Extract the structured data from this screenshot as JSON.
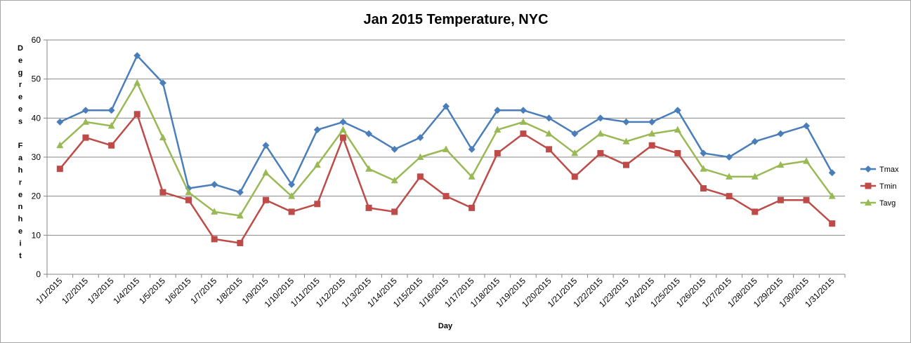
{
  "chart_data": {
    "type": "line",
    "title": "Jan 2015 Temperature, NYC",
    "xlabel": "Day",
    "ylabel": "Degrees Fahrenheit",
    "ylim": [
      0,
      60
    ],
    "yticks": [
      0,
      10,
      20,
      30,
      40,
      50,
      60
    ],
    "grid": "horizontal",
    "legend_position": "right",
    "categories": [
      "1/1/2015",
      "1/2/2015",
      "1/3/2015",
      "1/4/2015",
      "1/5/2015",
      "1/6/2015",
      "1/7/2015",
      "1/8/2015",
      "1/9/2015",
      "1/10/2015",
      "1/11/2015",
      "1/12/2015",
      "1/13/2015",
      "1/14/2015",
      "1/15/2015",
      "1/16/2015",
      "1/17/2015",
      "1/18/2015",
      "1/19/2015",
      "1/20/2015",
      "1/21/2015",
      "1/22/2015",
      "1/23/2015",
      "1/24/2015",
      "1/25/2015",
      "1/26/2015",
      "1/27/2015",
      "1/28/2015",
      "1/29/2015",
      "1/30/2015",
      "1/31/2015"
    ],
    "series": [
      {
        "name": "Tmax",
        "color": "#4a7ebb",
        "marker": "diamond",
        "values": [
          39,
          42,
          42,
          56,
          49,
          22,
          23,
          21,
          33,
          23,
          37,
          39,
          36,
          32,
          35,
          43,
          32,
          42,
          42,
          40,
          36,
          40,
          39,
          39,
          42,
          31,
          30,
          34,
          36,
          38,
          26
        ]
      },
      {
        "name": "Tmin",
        "color": "#be4b48",
        "marker": "square",
        "values": [
          27,
          35,
          33,
          41,
          21,
          19,
          9,
          8,
          19,
          16,
          18,
          35,
          17,
          16,
          25,
          20,
          17,
          31,
          36,
          32,
          25,
          31,
          28,
          33,
          31,
          22,
          20,
          16,
          19,
          19,
          13
        ]
      },
      {
        "name": "Tavg",
        "color": "#98b954",
        "marker": "triangle",
        "values": [
          33,
          39,
          38,
          49,
          35,
          21,
          16,
          15,
          26,
          20,
          28,
          37,
          27,
          24,
          30,
          32,
          25,
          37,
          39,
          36,
          31,
          36,
          34,
          36,
          37,
          27,
          25,
          25,
          28,
          29,
          20
        ]
      }
    ]
  }
}
